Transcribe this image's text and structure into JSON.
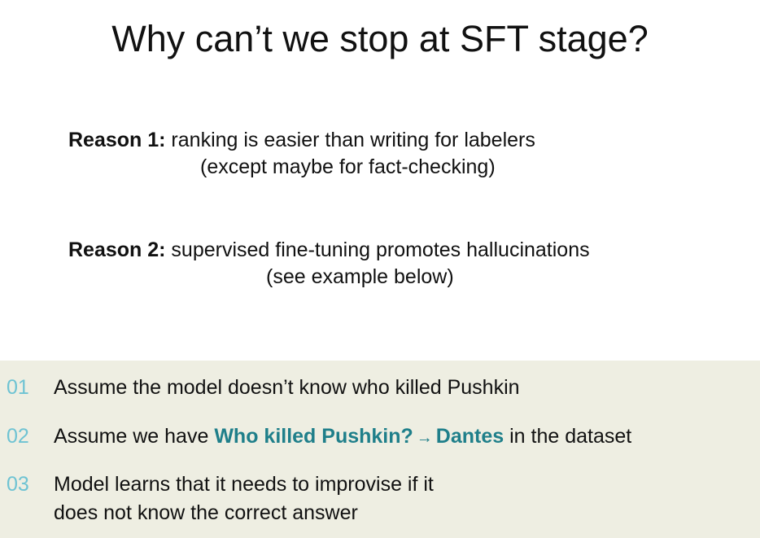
{
  "slide": {
    "title": "Why can’t we stop at SFT stage?",
    "reasons": [
      {
        "label": "Reason 1:",
        "text": " ranking is easier than writing for labelers",
        "continuation": "(except maybe for fact-checking)"
      },
      {
        "label": "Reason 2:",
        "text": " supervised fine-tuning promotes hallucinations",
        "continuation": "(see example below)"
      }
    ],
    "points": [
      {
        "number": "01",
        "text": "Assume the model doesn’t know who killed Pushkin"
      },
      {
        "number": "02",
        "prefix": "Assume we have ",
        "question": "Who killed Pushkin?",
        "arrow": "→",
        "answer": "Dantes",
        "suffix": " in the dataset"
      },
      {
        "number": "03",
        "line1": "Model learns that it needs to improvise if it",
        "line2": "does not know the correct answer"
      }
    ]
  },
  "colors": {
    "panel_background": "#eeeee2",
    "number_color": "#6ec3d3",
    "highlight_color": "#1f7f8a"
  }
}
